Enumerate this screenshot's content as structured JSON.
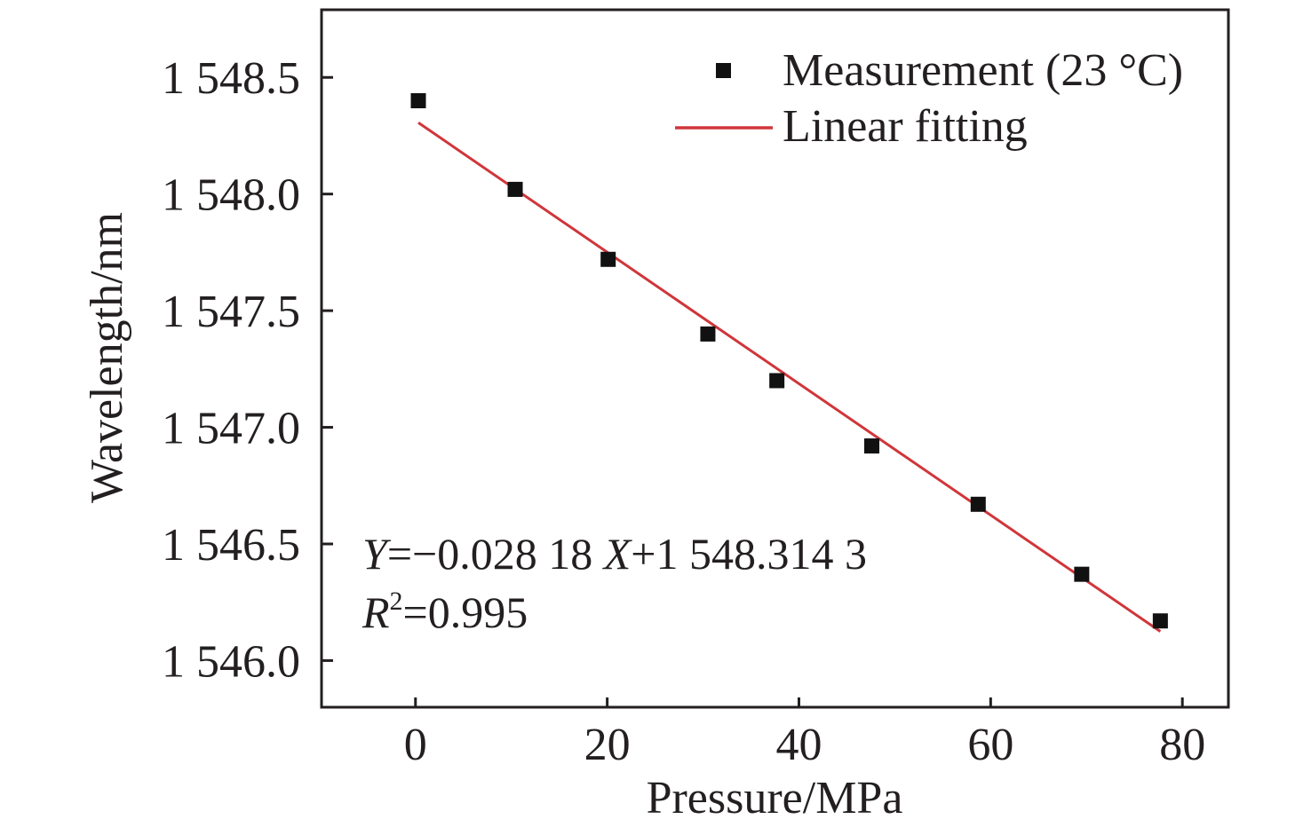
{
  "chart_data": {
    "type": "scatter",
    "title": "",
    "xlabel": "Pressure/MPa",
    "ylabel": "Wavelength/nm",
    "xlim": [
      -9.8,
      84.8
    ],
    "ylim": [
      1545.8,
      1548.79
    ],
    "grid": false,
    "x_ticks": [
      0,
      20,
      40,
      60,
      80
    ],
    "x_tick_labels": [
      "0",
      "20",
      "40",
      "60",
      "80"
    ],
    "y_ticks": [
      1546.0,
      1546.5,
      1547.0,
      1547.5,
      1548.0,
      1548.5
    ],
    "y_tick_labels": [
      "1 546.0",
      "1 546.5",
      "1 547.0",
      "1 547.5",
      "1 548.0",
      "1 548.5"
    ],
    "legend_position": "top-right",
    "series": [
      {
        "name": "Measurement (23 °C)",
        "kind": "scatter",
        "marker": "square",
        "color": "#111111",
        "x": [
          0.3,
          10.4,
          20.1,
          30.5,
          37.7,
          47.6,
          58.7,
          69.5,
          77.7
        ],
        "y": [
          1548.4,
          1548.02,
          1547.72,
          1547.4,
          1547.2,
          1546.92,
          1546.67,
          1546.37,
          1546.17
        ]
      },
      {
        "name": "Linear fitting",
        "kind": "line",
        "color": "#d0363a",
        "slope": -0.02818,
        "intercept": 1548.3143,
        "x_range": [
          0.3,
          77.7
        ]
      }
    ],
    "annotations": {
      "equation": {
        "y_var": "Y",
        "eq_part1": "=−0.028 18 ",
        "x_var": "X",
        "eq_part2": "+1 548.314 3"
      },
      "r_squared": {
        "r_var": "R",
        "sup": "2",
        "value": "=0.995"
      }
    }
  }
}
